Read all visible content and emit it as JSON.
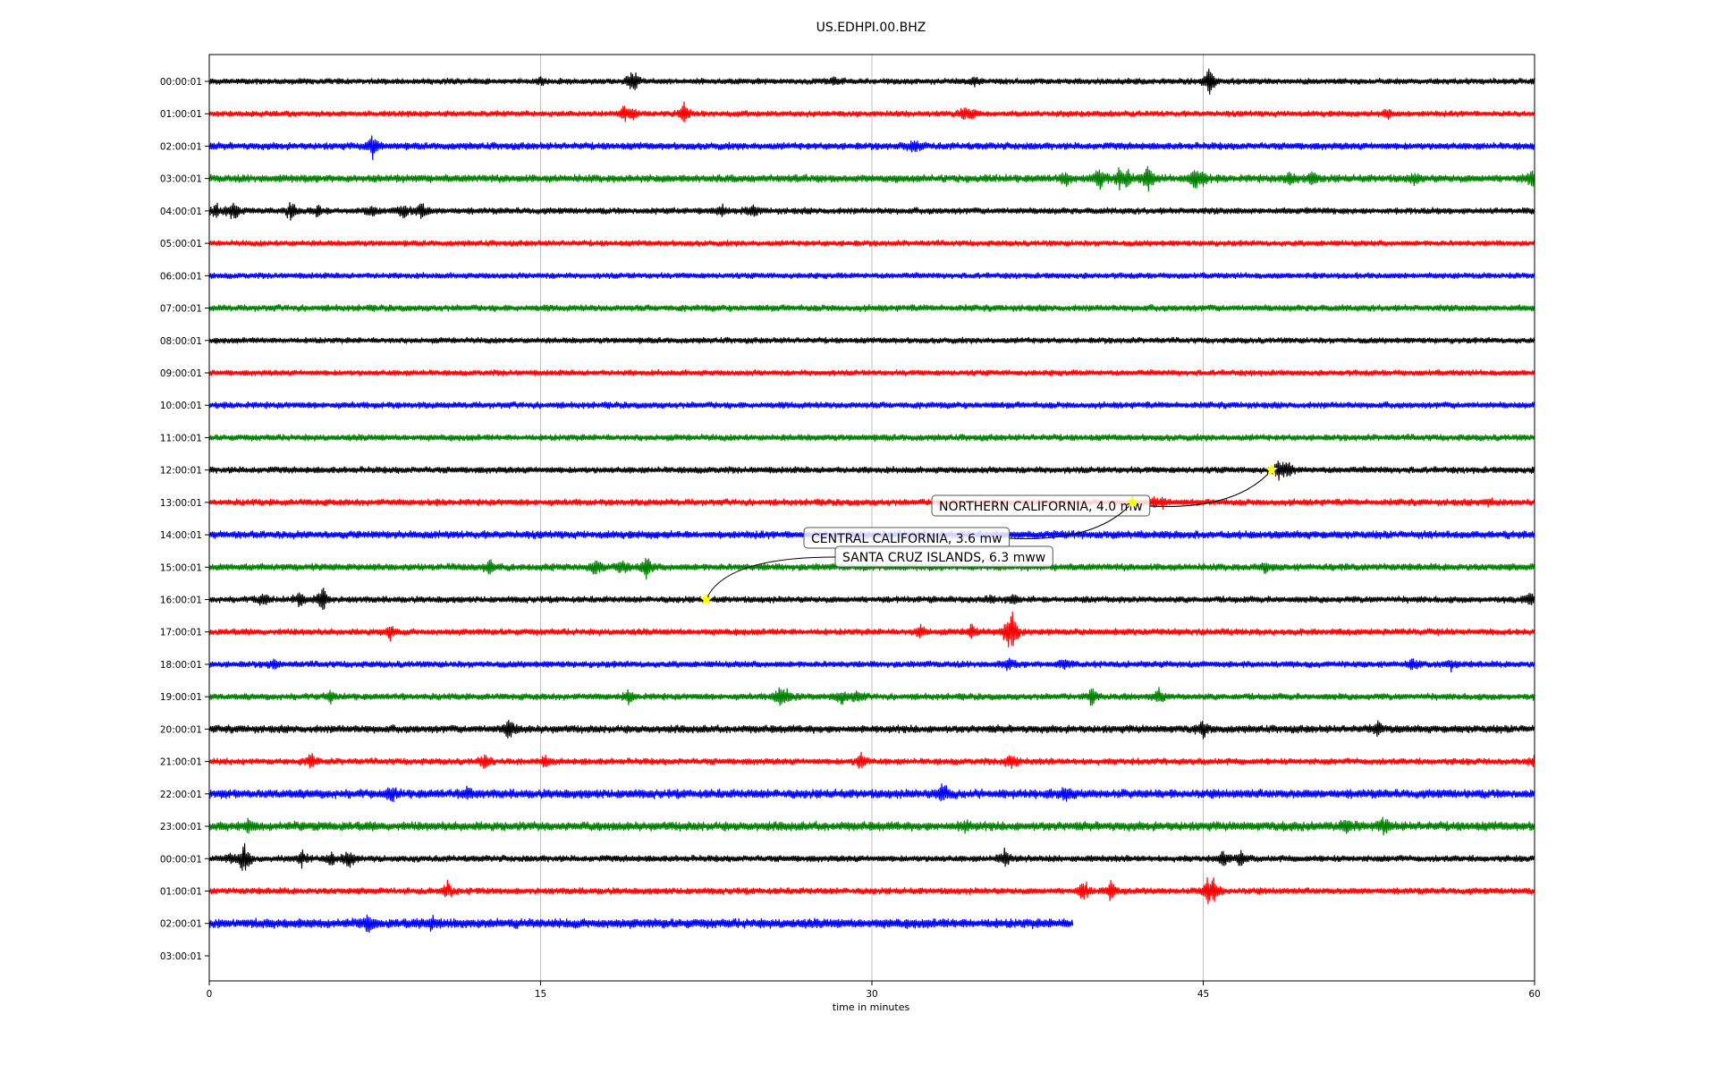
{
  "chart_data": {
    "type": "line",
    "title": "US.EDHPI.00.BHZ",
    "xlabel": "time in minutes",
    "ylabel": "",
    "xlim": [
      0,
      60
    ],
    "xticks": [
      0,
      15,
      30,
      45,
      60
    ],
    "grid": "vertical lines at x ticks",
    "line_colors": [
      "#000000",
      "#ff0000",
      "#0000ff",
      "#008000"
    ],
    "rows": [
      {
        "label": "00:00:01",
        "end": 60,
        "noise": 1.0,
        "spikes": [
          [
            15,
            5
          ],
          [
            19.1,
            9
          ],
          [
            19.3,
            7
          ],
          [
            28.3,
            6
          ],
          [
            34.6,
            6
          ],
          [
            45.3,
            20
          ]
        ]
      },
      {
        "label": "01:00:01",
        "end": 60,
        "noise": 1.0,
        "spikes": [
          [
            18.8,
            10
          ],
          [
            19.2,
            5
          ],
          [
            21.5,
            13
          ],
          [
            34.2,
            10
          ],
          [
            34.6,
            6
          ],
          [
            53.4,
            8
          ]
        ]
      },
      {
        "label": "02:00:01",
        "end": 60,
        "noise": 1.2,
        "spikes": [
          [
            7.4,
            15
          ],
          [
            31.8,
            6
          ],
          [
            32.1,
            4
          ]
        ]
      },
      {
        "label": "03:00:01",
        "end": 60,
        "noise": 1.3,
        "spikes": [
          [
            38.8,
            9
          ],
          [
            40.3,
            14
          ],
          [
            41.2,
            11
          ],
          [
            41.6,
            9
          ],
          [
            42.5,
            18
          ],
          [
            44.6,
            13
          ],
          [
            45,
            8
          ],
          [
            48.9,
            8
          ],
          [
            49.9,
            10
          ],
          [
            54.6,
            7
          ],
          [
            59.9,
            12
          ]
        ]
      },
      {
        "label": "04:00:01",
        "end": 60,
        "noise": 1.1,
        "spikes": [
          [
            0.3,
            8
          ],
          [
            1.1,
            12
          ],
          [
            3.7,
            14
          ],
          [
            4.9,
            7
          ],
          [
            7.4,
            6
          ],
          [
            8.8,
            10
          ],
          [
            9.6,
            12
          ],
          [
            23.2,
            8
          ],
          [
            24.6,
            8
          ]
        ]
      },
      {
        "label": "05:00:01",
        "end": 60,
        "noise": 1.0,
        "spikes": []
      },
      {
        "label": "06:00:01",
        "end": 60,
        "noise": 1.0,
        "spikes": []
      },
      {
        "label": "07:00:01",
        "end": 60,
        "noise": 1.1,
        "spikes": []
      },
      {
        "label": "08:00:01",
        "end": 60,
        "noise": 1.0,
        "spikes": []
      },
      {
        "label": "09:00:01",
        "end": 60,
        "noise": 1.0,
        "spikes": []
      },
      {
        "label": "10:00:01",
        "end": 60,
        "noise": 1.1,
        "spikes": []
      },
      {
        "label": "11:00:01",
        "end": 60,
        "noise": 1.1,
        "spikes": []
      },
      {
        "label": "12:00:01",
        "end": 60,
        "noise": 1.1,
        "spikes": [
          [
            48.4,
            12
          ],
          [
            48.8,
            10
          ]
        ]
      },
      {
        "label": "13:00:01",
        "end": 60,
        "noise": 1.1,
        "spikes": [
          [
            42.8,
            5
          ],
          [
            43.2,
            5
          ],
          [
            57.9,
            5
          ]
        ]
      },
      {
        "label": "14:00:01",
        "end": 60,
        "noise": 1.3,
        "spikes": []
      },
      {
        "label": "15:00:01",
        "end": 60,
        "noise": 1.2,
        "spikes": [
          [
            12.7,
            8
          ],
          [
            17.5,
            12
          ],
          [
            18.7,
            9
          ],
          [
            19.8,
            14
          ],
          [
            47.8,
            6
          ]
        ]
      },
      {
        "label": "16:00:01",
        "end": 60,
        "noise": 1.1,
        "spikes": [
          [
            2.4,
            8
          ],
          [
            4.1,
            9
          ],
          [
            5.1,
            18
          ],
          [
            35.4,
            5
          ],
          [
            36.4,
            7
          ],
          [
            59.8,
            8
          ]
        ]
      },
      {
        "label": "17:00:01",
        "end": 60,
        "noise": 1.1,
        "spikes": [
          [
            8.2,
            9
          ],
          [
            32.2,
            9
          ],
          [
            34.5,
            10
          ],
          [
            36.4,
            19
          ],
          [
            36.2,
            24
          ]
        ]
      },
      {
        "label": "18:00:01",
        "end": 60,
        "noise": 1.1,
        "spikes": [
          [
            2.9,
            6
          ],
          [
            36.2,
            7
          ],
          [
            38.7,
            9
          ],
          [
            54.5,
            7
          ],
          [
            56.2,
            6
          ]
        ]
      },
      {
        "label": "19:00:01",
        "end": 60,
        "noise": 1.1,
        "spikes": [
          [
            5.5,
            6
          ],
          [
            19,
            7
          ],
          [
            25.8,
            14
          ],
          [
            26.2,
            8
          ],
          [
            28.6,
            10
          ],
          [
            29.3,
            10
          ],
          [
            40,
            14
          ],
          [
            43,
            9
          ]
        ]
      },
      {
        "label": "20:00:01",
        "end": 60,
        "noise": 1.3,
        "spikes": [
          [
            13.6,
            15
          ],
          [
            45,
            9
          ],
          [
            52.9,
            8
          ]
        ]
      },
      {
        "label": "21:00:01",
        "end": 60,
        "noise": 1.1,
        "spikes": [
          [
            4.6,
            10
          ],
          [
            12.5,
            9
          ],
          [
            15.2,
            7
          ],
          [
            29.5,
            12
          ],
          [
            36.3,
            11
          ],
          [
            60,
            6
          ]
        ]
      },
      {
        "label": "22:00:01",
        "end": 60,
        "noise": 1.5,
        "spikes": [
          [
            8.3,
            9
          ],
          [
            11.7,
            8
          ],
          [
            33.2,
            15
          ],
          [
            38.8,
            8
          ]
        ]
      },
      {
        "label": "23:00:01",
        "end": 60,
        "noise": 1.5,
        "spikes": [
          [
            1.8,
            6
          ],
          [
            34.2,
            6
          ],
          [
            51.5,
            8
          ],
          [
            53.2,
            9
          ]
        ]
      },
      {
        "label": "00:00:01",
        "end": 60,
        "noise": 1.1,
        "spikes": [
          [
            1,
            6
          ],
          [
            1.6,
            22
          ],
          [
            4.2,
            11
          ],
          [
            5.5,
            9
          ],
          [
            6.3,
            14
          ],
          [
            36,
            12
          ],
          [
            45.9,
            10
          ],
          [
            46.7,
            10
          ]
        ]
      },
      {
        "label": "01:00:01",
        "end": 60,
        "noise": 1.1,
        "spikes": [
          [
            10.8,
            10
          ],
          [
            39.6,
            14
          ],
          [
            40.8,
            11
          ],
          [
            45.2,
            18
          ],
          [
            45.5,
            14
          ]
        ]
      },
      {
        "label": "02:00:01",
        "end": 39.1,
        "noise": 1.6,
        "spikes": [
          [
            7.2,
            10
          ],
          [
            10.1,
            10
          ]
        ]
      },
      {
        "label": "03:00:01",
        "end": 0,
        "noise": 0,
        "spikes": []
      }
    ],
    "events": [
      {
        "label": "NORTHERN CALIFORNIA, 4.0 mw",
        "row": 12,
        "x": 48.1
      },
      {
        "label": "CENTRAL CALIFORNIA, 3.6 mw",
        "row": 13,
        "x": 41.8
      },
      {
        "label": "SANTA CRUZ ISLANDS, 6.3 mww",
        "row": 16,
        "x": 22.5
      }
    ]
  }
}
